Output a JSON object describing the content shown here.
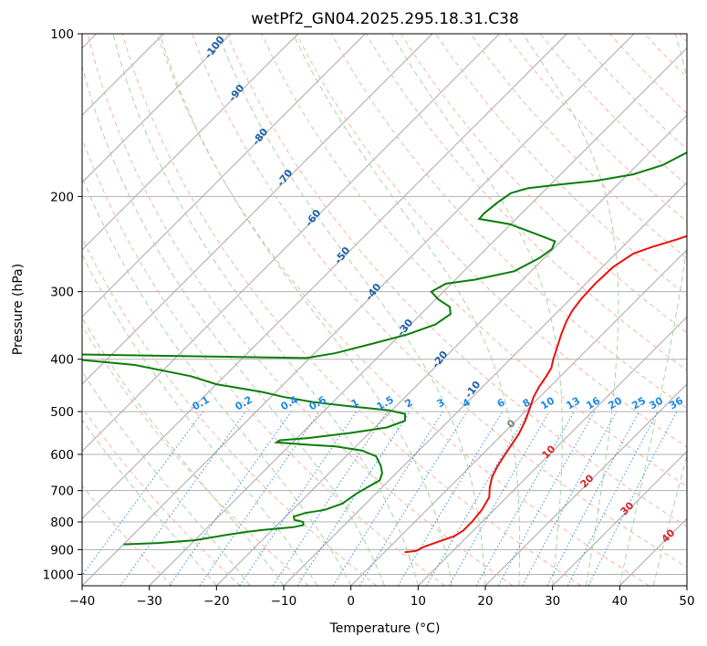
{
  "chart_data": {
    "type": "line",
    "title": "wetPf2_GN04.2025.295.18.31.C38",
    "xlabel": "Temperature (°C)",
    "ylabel": "Pressure (hPa)",
    "xlim": [
      -40,
      50
    ],
    "ylim": [
      1050,
      100
    ],
    "y_scale": "log",
    "x_ticks": [
      -40,
      -30,
      -20,
      -10,
      0,
      10,
      20,
      30,
      40,
      50
    ],
    "y_ticks": [
      100,
      200,
      300,
      400,
      500,
      600,
      700,
      800,
      900,
      1000
    ],
    "grid": true,
    "skew": 45,
    "series": [
      {
        "color": "#e8120c",
        "points": [
          [
            3,
            910
          ],
          [
            4.5,
            905
          ],
          [
            5,
            890
          ],
          [
            6.5,
            870
          ],
          [
            8,
            850
          ],
          [
            8.5,
            830
          ],
          [
            8.5,
            800
          ],
          [
            8.2,
            760
          ],
          [
            7.4,
            720
          ],
          [
            6,
            690
          ],
          [
            4.8,
            660
          ],
          [
            4,
            630
          ],
          [
            3.4,
            600
          ],
          [
            3,
            580
          ],
          [
            2.4,
            550
          ],
          [
            1.4,
            520
          ],
          [
            0.3,
            495
          ],
          [
            -0.9,
            470
          ],
          [
            -1.6,
            450
          ],
          [
            -2.1,
            430
          ],
          [
            -2.6,
            415
          ],
          [
            -3.6,
            400
          ],
          [
            -4.8,
            380
          ],
          [
            -6.1,
            360
          ],
          [
            -7.3,
            340
          ],
          [
            -8,
            325
          ],
          [
            -8.4,
            310
          ],
          [
            -8.6,
            290
          ],
          [
            -8.4,
            270
          ],
          [
            -7.4,
            255
          ],
          [
            -5.6,
            248
          ],
          [
            -3,
            240
          ],
          [
            -0.6,
            232
          ],
          [
            1.6,
            225
          ],
          [
            3.7,
            216
          ],
          [
            5.1,
            206
          ],
          [
            6,
            198
          ],
          [
            7.2,
            185
          ],
          [
            8.7,
            170
          ],
          [
            10.3,
            155
          ],
          [
            12.3,
            140
          ],
          [
            14.8,
            125
          ],
          [
            16.6,
            115
          ],
          [
            18.2,
            108
          ],
          [
            19.3,
            103
          ],
          [
            20.2,
            100
          ]
        ]
      },
      {
        "color": "#0a7d0a",
        "points": [
          [
            -40,
            880
          ],
          [
            -35,
            875
          ],
          [
            -30,
            865
          ],
          [
            -26,
            845
          ],
          [
            -23.6,
            835
          ],
          [
            -21.5,
            828
          ],
          [
            -17.3,
            818
          ],
          [
            -16.1,
            811
          ],
          [
            -16.6,
            800
          ],
          [
            -18.2,
            793
          ],
          [
            -18.8,
            782
          ],
          [
            -17.6,
            770
          ],
          [
            -15.2,
            760
          ],
          [
            -13.5,
            740
          ],
          [
            -12.9,
            710
          ],
          [
            -12.2,
            690
          ],
          [
            -11.4,
            670
          ],
          [
            -12.1,
            650
          ],
          [
            -13.4,
            630
          ],
          [
            -15.5,
            605
          ],
          [
            -18.5,
            590
          ],
          [
            -23,
            580
          ],
          [
            -28,
            575
          ],
          [
            -32.4,
            570
          ],
          [
            -32.2,
            565
          ],
          [
            -28.5,
            560
          ],
          [
            -23,
            548
          ],
          [
            -18.2,
            535
          ],
          [
            -16.5,
            520
          ],
          [
            -17.5,
            505
          ],
          [
            -20.5,
            497
          ],
          [
            -26,
            490
          ],
          [
            -33,
            480
          ],
          [
            -38,
            470
          ],
          [
            -42,
            460
          ],
          [
            -50,
            445
          ],
          [
            -55,
            430
          ],
          [
            -65,
            410
          ],
          [
            -80,
            395
          ],
          [
            -86,
            390
          ],
          [
            -40.5,
            398
          ],
          [
            -37,
            390
          ],
          [
            -33,
            375
          ],
          [
            -29,
            360
          ],
          [
            -26.3,
            345
          ],
          [
            -25.6,
            330
          ],
          [
            -26.8,
            320
          ],
          [
            -29.6,
            310
          ],
          [
            -31.8,
            300
          ],
          [
            -30.8,
            290
          ],
          [
            -27.1,
            285
          ],
          [
            -22.5,
            275
          ],
          [
            -20.7,
            260
          ],
          [
            -20.2,
            250
          ],
          [
            -20.9,
            242
          ],
          [
            -24.6,
            235
          ],
          [
            -30.2,
            225
          ],
          [
            -35.5,
            220
          ],
          [
            -35.6,
            215
          ],
          [
            -35.2,
            205
          ],
          [
            -34.6,
            197
          ],
          [
            -32.8,
            193
          ],
          [
            -28.5,
            190
          ],
          [
            -23.8,
            187
          ],
          [
            -19.2,
            182
          ],
          [
            -16.2,
            175
          ],
          [
            -14.3,
            165
          ],
          [
            -13.8,
            155
          ],
          [
            -13.4,
            145
          ],
          [
            -12.5,
            135
          ],
          [
            -11.2,
            125
          ],
          [
            -9.7,
            115
          ],
          [
            -8.5,
            108
          ],
          [
            -7.5,
            102
          ],
          [
            -7.2,
            100
          ]
        ]
      }
    ],
    "mixing_ratio_labels": [
      "0.1",
      "0.2",
      "0.4",
      "0.6",
      "1",
      "1.5",
      "2",
      "3",
      "4",
      "6",
      "8",
      "10",
      "13",
      "16",
      "20",
      "25",
      "30",
      "36"
    ],
    "dry_adiabat_labels": [
      "-100",
      "-90",
      "-80",
      "-70",
      "-60",
      "-50",
      "-40",
      "-30",
      "-20",
      "-10"
    ],
    "moist_adiabat_labels": [
      "10",
      "20",
      "30",
      "40"
    ],
    "zero_label": "0"
  }
}
